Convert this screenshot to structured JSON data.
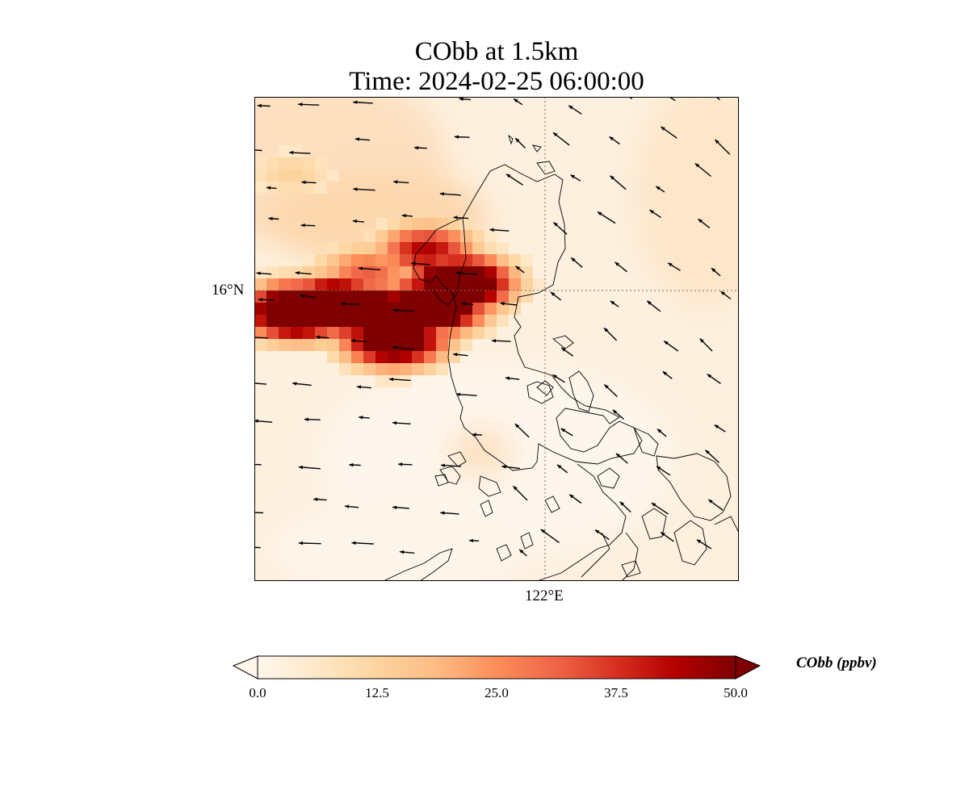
{
  "title": "CObb at 1.5km",
  "subtitle": "Time: 2024-02-25 06:00:00",
  "axes": {
    "lat_tick": "16°N",
    "lon_tick": "122°E"
  },
  "colorbar": {
    "label": "CObb (ppbv)",
    "min": 0.0,
    "max": 50.0,
    "extend": "both",
    "colormap": "OrRd",
    "stops": [
      "#fff7ec",
      "#fee8c8",
      "#fdd49e",
      "#fdbb84",
      "#fc8d59",
      "#ef6548",
      "#d7301f",
      "#b30000",
      "#7f0000"
    ],
    "ticks": [
      "0.0",
      "12.5",
      "25.0",
      "37.5",
      "50.0"
    ]
  },
  "chart_data": {
    "type": "heatmap",
    "title": "CObb at 1.5km",
    "subtitle": "Time: 2024-02-25 06:00:00",
    "variable": "CObb",
    "units": "ppbv",
    "value_range": [
      0,
      50
    ],
    "lon_range": [
      117.5,
      126.5
    ],
    "lat_range": [
      11.6,
      20.4
    ],
    "gridlines": {
      "lon": 122,
      "lat": 16
    },
    "plume": [
      {
        "lon": 118.3,
        "lat": 16.5,
        "value": 50
      },
      {
        "lon": 119.0,
        "lat": 16.6,
        "value": 50
      },
      {
        "lon": 119.6,
        "lat": 16.5,
        "value": 50
      },
      {
        "lon": 120.2,
        "lat": 16.4,
        "value": 50
      },
      {
        "lon": 120.8,
        "lat": 16.6,
        "value": 50
      },
      {
        "lon": 121.3,
        "lat": 17.0,
        "value": 50
      },
      {
        "lon": 120.1,
        "lat": 16.0,
        "value": 45
      },
      {
        "lon": 120.7,
        "lat": 17.6,
        "value": 28
      },
      {
        "lon": 119.6,
        "lat": 17.2,
        "value": 20
      },
      {
        "lon": 118.2,
        "lat": 19.0,
        "value": 8
      }
    ],
    "wind_vectors": "uniform easterly to northeasterly flow"
  }
}
